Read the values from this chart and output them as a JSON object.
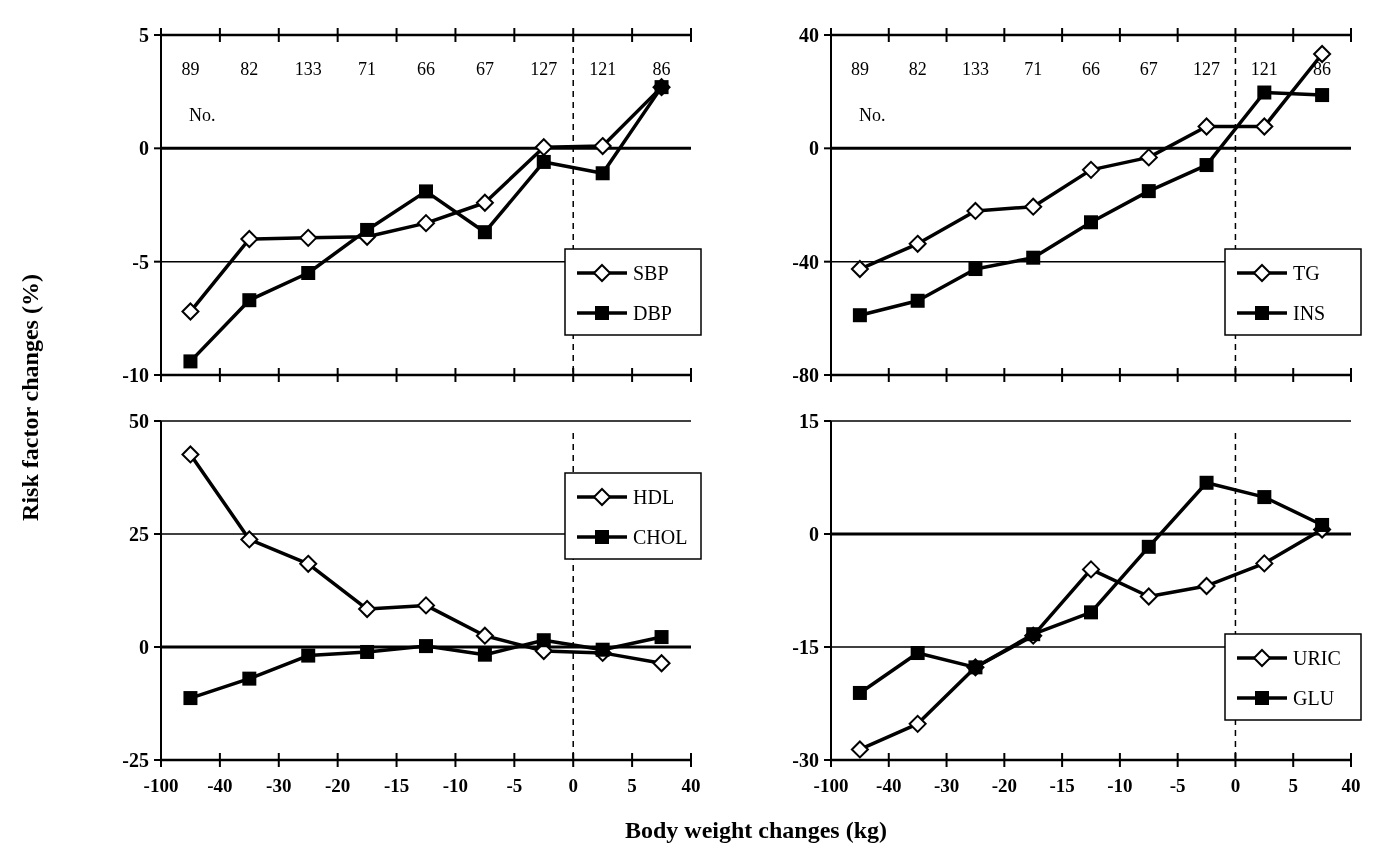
{
  "chart_data": [
    {
      "type": "line",
      "ylabel": "Risk factor changes (%)",
      "categories": [
        "-100",
        null,
        "-40",
        null,
        "-30",
        null,
        "-20",
        null,
        "-15",
        null,
        "-10",
        null,
        "-5",
        null,
        "0",
        null,
        "5",
        null,
        "40"
      ],
      "ylim": [
        -10,
        5
      ],
      "yticks": [
        -10,
        -5,
        0,
        5
      ],
      "tick_labels": "y",
      "legend": "bottom right",
      "ref_lines": [
        {
          "axis": "y",
          "value": 0,
          "line_style": "solid"
        },
        {
          "axis": "y",
          "value": -5,
          "line_style": "solid"
        },
        {
          "axis": "x",
          "value": "0",
          "line_style": "dashed"
        }
      ],
      "annotations": [
        "89",
        "82",
        "133",
        "71",
        "66",
        "67",
        "127",
        "121",
        "86",
        "No."
      ],
      "series": [
        {
          "name": "SBP",
          "color": "#000000",
          "marker": "diamond",
          "values": [
            null,
            -7.2,
            null,
            -4.0,
            null,
            -3.95,
            null,
            -3.9,
            null,
            -3.3,
            null,
            -2.4,
            null,
            0.05,
            null,
            0.1,
            null,
            2.7,
            null
          ]
        },
        {
          "name": "DBP",
          "color": "#000000",
          "marker": "square",
          "values": [
            null,
            -9.4,
            null,
            -6.7,
            null,
            -5.5,
            null,
            -3.6,
            null,
            -1.9,
            null,
            -3.7,
            null,
            -0.6,
            null,
            -1.1,
            null,
            2.7,
            null
          ]
        }
      ]
    },
    {
      "type": "line",
      "categories": [
        "-100",
        null,
        "-40",
        null,
        "-30",
        null,
        "-20",
        null,
        "-15",
        null,
        "-10",
        null,
        "-5",
        null,
        "0",
        null,
        "5",
        null,
        "40"
      ],
      "ylim": [
        -80,
        40
      ],
      "yticks": [
        -80,
        -40,
        0,
        40
      ],
      "tick_labels": "y",
      "legend": "bottom right",
      "ref_lines": [
        {
          "axis": "y",
          "value": 0,
          "line_style": "solid"
        },
        {
          "axis": "y",
          "value": -40,
          "line_style": "solid"
        },
        {
          "axis": "x",
          "value": "0",
          "line_style": "dashed"
        }
      ],
      "annotations": [
        "89",
        "82",
        "133",
        "71",
        "66",
        "67",
        "127",
        "121",
        "86",
        "No."
      ],
      "series": [
        {
          "name": "TG",
          "color": "#000000",
          "marker": "diamond",
          "values": [
            null,
            -42.6,
            null,
            -33.7,
            null,
            -22.1,
            null,
            -20.6,
            null,
            -7.6,
            null,
            -3.2,
            null,
            7.7,
            null,
            7.7,
            null,
            33.3,
            null
          ]
        },
        {
          "name": "INS",
          "color": "#000000",
          "marker": "square",
          "values": [
            null,
            -58.9,
            null,
            -53.8,
            null,
            -42.6,
            null,
            -38.6,
            null,
            -26.1,
            null,
            -15.1,
            null,
            -5.9,
            null,
            19.7,
            null,
            18.8,
            null
          ]
        }
      ]
    },
    {
      "type": "line",
      "xlabel": "Body weight changes (kg)",
      "categories": [
        "-100",
        null,
        "-40",
        null,
        "-30",
        null,
        "-20",
        null,
        "-15",
        null,
        "-10",
        null,
        "-5",
        null,
        "0",
        null,
        "5",
        null,
        "40"
      ],
      "ylim": [
        -25,
        50
      ],
      "yticks": [
        -25,
        0,
        25,
        50
      ],
      "legend": "top right",
      "ref_lines": [
        {
          "axis": "y",
          "value": 0,
          "line_style": "solid"
        },
        {
          "axis": "y",
          "value": 25,
          "line_style": "solid"
        },
        {
          "axis": "y",
          "value": 50,
          "line_style": "solid"
        },
        {
          "axis": "x",
          "value": "0",
          "line_style": "dashed"
        }
      ],
      "series": [
        {
          "name": "HDL",
          "color": "#000000",
          "marker": "diamond",
          "values": [
            null,
            42.6,
            null,
            23.8,
            null,
            18.4,
            null,
            8.4,
            null,
            9.2,
            null,
            2.5,
            null,
            -0.9,
            null,
            -1.3,
            null,
            -3.6,
            null
          ]
        },
        {
          "name": "CHOL",
          "color": "#000000",
          "marker": "square",
          "values": [
            null,
            -11.3,
            null,
            -7,
            null,
            -1.9,
            null,
            -1.1,
            null,
            0.2,
            null,
            -1.7,
            null,
            1.5,
            null,
            -0.6,
            null,
            2.2,
            null
          ]
        }
      ]
    },
    {
      "type": "line",
      "categories": [
        "-100",
        null,
        "-40",
        null,
        "-30",
        null,
        "-20",
        null,
        "-15",
        null,
        "-10",
        null,
        "-5",
        null,
        "0",
        null,
        "5",
        null,
        "40"
      ],
      "ylim": [
        -30,
        15
      ],
      "yticks": [
        -30,
        -15,
        0,
        15
      ],
      "legend": "bottom right",
      "ref_lines": [
        {
          "axis": "y",
          "value": 0,
          "line_style": "solid"
        },
        {
          "axis": "y",
          "value": -15,
          "line_style": "solid"
        },
        {
          "axis": "y",
          "value": 15,
          "line_style": "solid"
        },
        {
          "axis": "x",
          "value": "0",
          "line_style": "dashed"
        }
      ],
      "series": [
        {
          "name": "URIC",
          "color": "#000000",
          "marker": "diamond",
          "values": [
            null,
            -28.6,
            null,
            -25.2,
            null,
            -17.7,
            null,
            -13.5,
            null,
            -4.7,
            null,
            -8.3,
            null,
            -6.9,
            null,
            -3.9,
            null,
            0.6,
            null
          ]
        },
        {
          "name": "GLU",
          "color": "#000000",
          "marker": "square",
          "values": [
            null,
            -21.1,
            null,
            -15.8,
            null,
            -17.7,
            null,
            -13.3,
            null,
            -10.4,
            null,
            -1.7,
            null,
            6.8,
            null,
            4.9,
            null,
            1.2,
            null
          ]
        }
      ]
    }
  ]
}
